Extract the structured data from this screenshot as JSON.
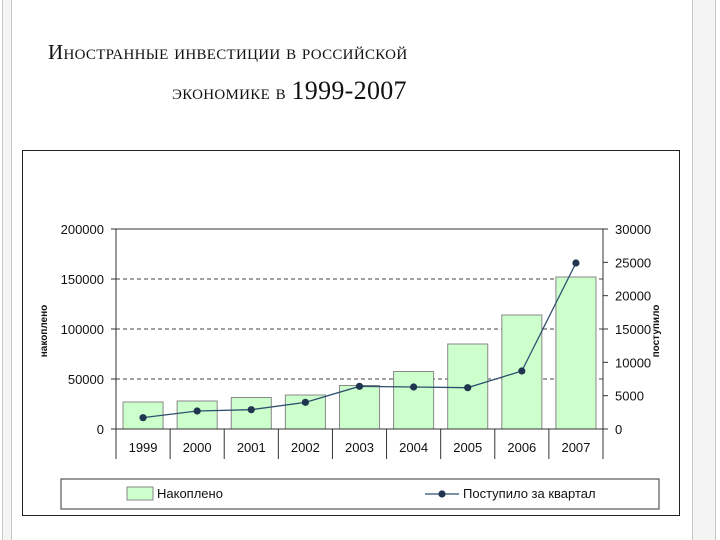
{
  "title": {
    "line1": "Иностранные инвестиции в российской",
    "line2_text": "экономике в ",
    "line2_years": "1999-2007"
  },
  "chart_data": {
    "type": "bar",
    "categories": [
      "1999",
      "2000",
      "2001",
      "2002",
      "2003",
      "2004",
      "2005",
      "2006",
      "2007"
    ],
    "series": [
      {
        "name": "Накоплено",
        "type": "bar",
        "axis": "left",
        "values": [
          27000,
          28000,
          31500,
          34000,
          43500,
          57500,
          85000,
          114000,
          152000
        ]
      },
      {
        "name": "Поступило за квартал",
        "type": "line",
        "axis": "right",
        "values": [
          1700,
          2700,
          2900,
          4000,
          6400,
          6300,
          6200,
          8700,
          24900
        ]
      }
    ],
    "ylabel": "накоплено",
    "y2label": "поступило",
    "ylim": [
      0,
      200000
    ],
    "y2lim": [
      0,
      30000
    ],
    "yticks": [
      "200000",
      "150000",
      "100000",
      "50000",
      "0"
    ],
    "y2ticks": [
      "30000",
      "25000",
      "20000",
      "15000",
      "10000",
      "5000",
      "0"
    ],
    "grid": "horizontal dashed",
    "legend": "bottom",
    "colors": {
      "bar_fill": "#ccffcc",
      "bar_stroke": "#888888",
      "line": "#2f4f6f",
      "marker": "#1f3550"
    }
  }
}
